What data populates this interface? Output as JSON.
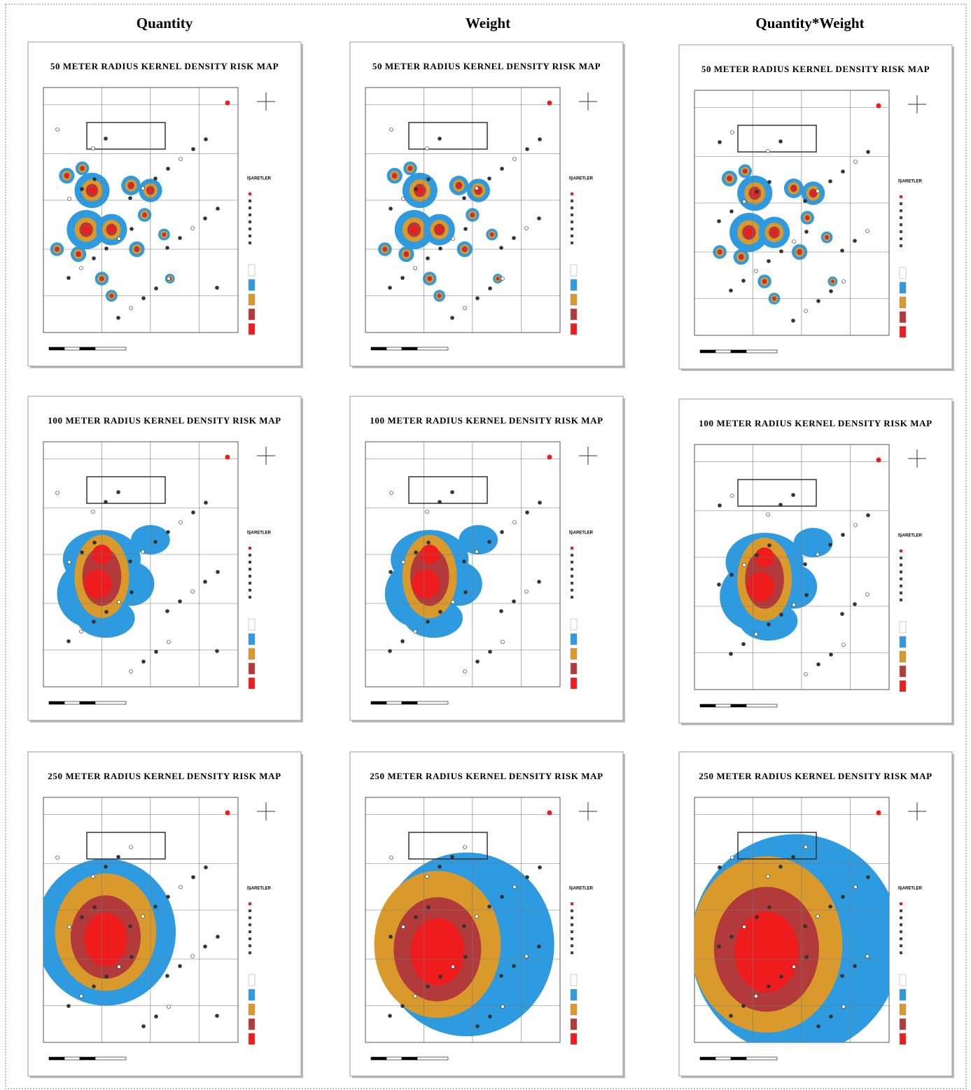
{
  "columns": [
    "Quantity",
    "Weight",
    "Quantity*Weight"
  ],
  "panels": [
    [
      {
        "title": "50 METER RADIUS KERNEL DENSITY RISK MAP"
      },
      {
        "title": "50 METER RADIUS KERNEL DENSITY RISK MAP"
      },
      {
        "title": "50 METER RADIUS KERNEL DENSITY RISK MAP"
      }
    ],
    [
      {
        "title": "100 METER RADIUS KERNEL DENSITY RISK MAP"
      },
      {
        "title": "100 METER RADIUS KERNEL DENSITY RISK MAP"
      },
      {
        "title": "100 METER RADIUS KERNEL DENSITY RISK MAP"
      }
    ],
    [
      {
        "title": "250 METER RADIUS KERNEL DENSITY RISK MAP"
      },
      {
        "title": "250 METER RADIUS KERNEL DENSITY RISK MAP"
      },
      {
        "title": "250 METER RADIUS KERNEL DENSITY RISK MAP"
      }
    ]
  ],
  "legend_title": "İŞARETLER"
}
